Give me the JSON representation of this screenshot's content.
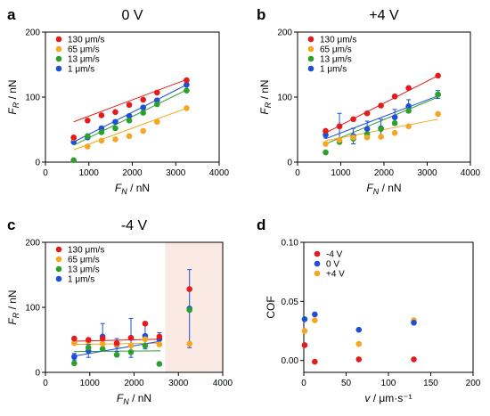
{
  "chart_data": [
    {
      "type": "scatter",
      "panel_label": "a",
      "title": "0 V",
      "xlabel": "F_N / nN",
      "ylabel": "F_R / nN",
      "xlim": [
        0,
        4000
      ],
      "ylim": [
        0,
        200
      ],
      "xticks": [
        0,
        1000,
        2000,
        3000,
        4000
      ],
      "yticks": [
        0,
        100,
        200
      ],
      "fit_lines": true,
      "legend_position": "top-left",
      "series": [
        {
          "name": "130 μm/s",
          "color": "#e41a1c",
          "x": [
            650,
            970,
            1290,
            1610,
            1930,
            2250,
            2570,
            3250
          ],
          "y": [
            38,
            64,
            72,
            77,
            88,
            96,
            107,
            126
          ],
          "fit": [
            [
              650,
              62
            ],
            [
              3250,
              127
            ]
          ]
        },
        {
          "name": "65 μm/s",
          "color": "#f5a623",
          "x": [
            650,
            970,
            1290,
            1610,
            1930,
            2250,
            2570,
            3250
          ],
          "y": [
            37,
            24,
            33,
            35,
            40,
            48,
            62,
            83
          ],
          "fit": [
            [
              650,
              19
            ],
            [
              3250,
              83
            ]
          ]
        },
        {
          "name": "13 μm/s",
          "color": "#2ca02c",
          "x": [
            650,
            970,
            1290,
            1610,
            1930,
            2250,
            2570,
            3250
          ],
          "y": [
            3,
            40,
            46,
            52,
            64,
            76,
            89,
            110
          ],
          "fit": [
            [
              650,
              26
            ],
            [
              3250,
              111
            ]
          ]
        },
        {
          "name": "1 μm/s",
          "color": "#1f4fd6",
          "x": [
            650,
            970,
            1290,
            1610,
            1930,
            2250,
            2570,
            3250
          ],
          "y": [
            31,
            38,
            52,
            62,
            71,
            84,
            95,
            119
          ],
          "fit": [
            [
              650,
              31
            ],
            [
              3250,
              119
            ]
          ]
        }
      ]
    },
    {
      "type": "scatter",
      "panel_label": "b",
      "title": "+4 V",
      "xlabel": "F_N / nN",
      "ylabel": "F_R / nN",
      "xlim": [
        0,
        4000
      ],
      "ylim": [
        0,
        200
      ],
      "xticks": [
        0,
        1000,
        2000,
        3000,
        4000
      ],
      "yticks": [
        0,
        100,
        200
      ],
      "fit_lines": true,
      "legend_position": "top-left",
      "series": [
        {
          "name": "130 μm/s",
          "color": "#e41a1c",
          "x": [
            650,
            970,
            1290,
            1610,
            1930,
            2250,
            2570,
            3250
          ],
          "y": [
            48,
            55,
            66,
            75,
            87,
            101,
            114,
            133
          ],
          "fit": [
            [
              650,
              45
            ],
            [
              3250,
              133
            ]
          ]
        },
        {
          "name": "65 μm/s",
          "color": "#f5a623",
          "x": [
            650,
            970,
            1290,
            1610,
            1930,
            2250,
            2570,
            3250
          ],
          "y": [
            28,
            34,
            38,
            38,
            39,
            45,
            55,
            74
          ],
          "fit": [
            [
              650,
              33
            ],
            [
              3250,
              66
            ]
          ]
        },
        {
          "name": "13 μm/s",
          "color": "#2ca02c",
          "x": [
            650,
            970,
            1290,
            1610,
            1930,
            2250,
            2570,
            3250
          ],
          "y": [
            15,
            31,
            36,
            43,
            51,
            60,
            79,
            104
          ],
          "fit": [
            [
              650,
              28
            ],
            [
              3250,
              100
            ]
          ]
        },
        {
          "name": "1 μm/s",
          "color": "#1f4fd6",
          "x": [
            650,
            970,
            1290,
            1610,
            1930,
            2250,
            2570,
            3250
          ],
          "y": [
            42,
            55,
            40,
            51,
            52,
            69,
            86,
            104
          ],
          "err": [
            5,
            20,
            12,
            12,
            14,
            12,
            10,
            6
          ],
          "fit": [
            [
              650,
              36
            ],
            [
              3250,
              102
            ]
          ]
        }
      ]
    },
    {
      "type": "scatter",
      "panel_label": "c",
      "title": "-4 V",
      "xlabel": "F_N / nN",
      "ylabel": "F_R / nN",
      "xlim": [
        0,
        4000
      ],
      "ylim": [
        0,
        200
      ],
      "xticks": [
        0,
        1000,
        2000,
        3000,
        4000
      ],
      "yticks": [
        0,
        100,
        200
      ],
      "fit_lines": true,
      "fit_xmax": 2600,
      "shaded_region_x": [
        2700,
        4000
      ],
      "shaded_color": "#fbe9e3",
      "legend_position": "top-left",
      "series": [
        {
          "name": "130 μm/s",
          "color": "#e41a1c",
          "x": [
            650,
            970,
            1290,
            1610,
            1930,
            2250,
            2570,
            3250
          ],
          "y": [
            52,
            50,
            52,
            45,
            53,
            75,
            55,
            128
          ],
          "fit": [
            [
              650,
              48
            ],
            [
              2600,
              51
            ]
          ]
        },
        {
          "name": "65 μm/s",
          "color": "#f5a623",
          "x": [
            650,
            970,
            1290,
            1610,
            1930,
            2250,
            2570,
            3250
          ],
          "y": [
            45,
            48,
            44,
            43,
            41,
            51,
            43,
            44
          ],
          "fit": [
            [
              650,
              43
            ],
            [
              2600,
              45
            ]
          ]
        },
        {
          "name": "13 μm/s",
          "color": "#2ca02c",
          "x": [
            650,
            970,
            1290,
            1610,
            1930,
            2250,
            2570,
            3250
          ],
          "y": [
            14,
            38,
            36,
            27,
            31,
            41,
            13,
            96
          ],
          "fit": [
            [
              650,
              32
            ],
            [
              2600,
              33
            ]
          ]
        },
        {
          "name": "1 μm/s",
          "color": "#1f4fd6",
          "x": [
            650,
            970,
            1290,
            1610,
            1930,
            2250,
            2570,
            3250
          ],
          "y": [
            24,
            33,
            55,
            42,
            53,
            56,
            51,
            98
          ],
          "err": [
            5,
            10,
            20,
            10,
            30,
            20,
            10,
            60
          ],
          "fit": [
            [
              650,
              25
            ],
            [
              2600,
              48
            ]
          ]
        }
      ]
    },
    {
      "type": "scatter",
      "panel_label": "d",
      "title": "",
      "xlabel": "v / μm·s⁻¹",
      "ylabel": "COF",
      "xlim": [
        0,
        200
      ],
      "ylim": [
        -0.01,
        0.1
      ],
      "xticks": [
        0,
        50,
        100,
        150,
        200
      ],
      "yticks": [
        0.0,
        0.05,
        0.1
      ],
      "ytick_labels": [
        "0.00",
        "0.05",
        "0.10"
      ],
      "fit_lines": false,
      "legend_position": "top-left",
      "series": [
        {
          "name": "-4 V",
          "color": "#e41a1c",
          "x": [
            1,
            13,
            65,
            130
          ],
          "y": [
            0.013,
            -0.001,
            0.001,
            0.001
          ]
        },
        {
          "name": "0 V",
          "color": "#1f4fd6",
          "x": [
            1,
            13,
            65,
            130
          ],
          "y": [
            0.035,
            0.039,
            0.026,
            0.032
          ]
        },
        {
          "name": "+4 V",
          "color": "#f5a623",
          "x": [
            1,
            13,
            65,
            130
          ],
          "y": [
            0.025,
            0.034,
            0.014,
            0.034
          ]
        }
      ]
    }
  ]
}
